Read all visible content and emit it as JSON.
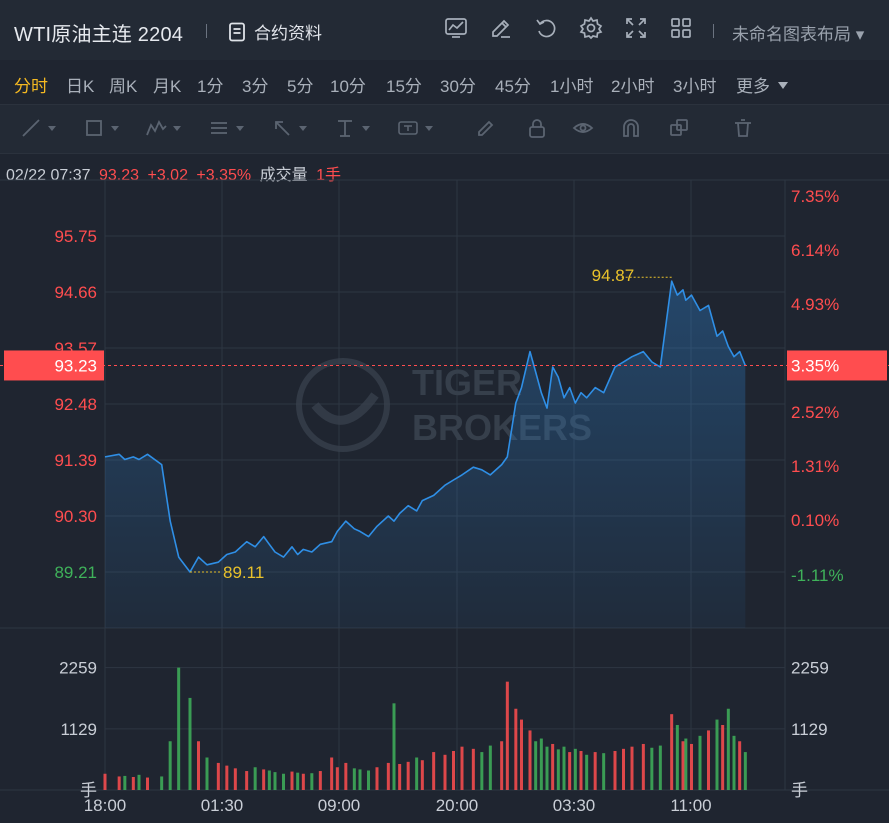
{
  "header": {
    "title": "WTI原油主连 2204",
    "contract_info_label": "合约资料",
    "layout_label": "未命名图表布局 ▾",
    "tool_icons": [
      "chart-template-icon",
      "edit-icon",
      "undo-icon",
      "settings-icon",
      "fullscreen-icon",
      "grid-layout-icon"
    ]
  },
  "periods": [
    "分时",
    "日K",
    "周K",
    "月K",
    "1分",
    "3分",
    "5分",
    "10分",
    "15分",
    "30分",
    "45分",
    "1小时",
    "2小时",
    "3小时",
    "更多"
  ],
  "active_period": "分时",
  "drawing_tools": [
    "line-tool-icon",
    "rectangle-tool-icon",
    "pattern-tool-icon",
    "fib-tool-icon",
    "arrow-tool-icon",
    "measure-tool-icon",
    "text-tool-icon",
    "brush-icon",
    "lock-icon",
    "eye-icon",
    "magnet-icon",
    "copy-icon",
    "trash-icon"
  ],
  "info": {
    "time": "02/22 07:37",
    "price": "93.23",
    "change": "+3.02",
    "change_pct": "+3.35%",
    "volume_label": "成交量",
    "volume_value": "1手"
  },
  "watermark": {
    "line1": "TIGER",
    "line2": "BROKERS"
  },
  "colors": {
    "up": "#ff4d4f",
    "down": "#3fb25a",
    "line": "#2f8fe6",
    "marker": "#e8c12b",
    "background": "#1f2530"
  },
  "chart_data": {
    "type": "line",
    "prev_close": 90.21,
    "last_price": 93.23,
    "last_pct": "3.35%",
    "ylim": [
      88.12,
      96.84
    ],
    "price_ticks": [
      "95.75",
      "94.66",
      "93.57",
      "92.48",
      "91.39",
      "90.30",
      "89.21"
    ],
    "pct_ticks": [
      "7.35%",
      "6.14%",
      "4.93%",
      "3.72%",
      "2.52%",
      "1.31%",
      "0.10%",
      "-1.11%"
    ],
    "x_ticks": [
      "18:00",
      "01:30",
      "09:00",
      "20:00",
      "03:30",
      "11:00"
    ],
    "high_label": "94.87",
    "low_label": "89.11",
    "volume_ticks": [
      "2259",
      "1129"
    ],
    "volume_unit": "手",
    "x_hours": [
      0,
      0.5,
      0.7,
      1,
      1.2,
      1.5,
      2,
      2.3,
      2.6,
      3,
      3.3,
      3.6,
      4,
      4.3,
      4.6,
      5,
      5.3,
      5.6,
      5.8,
      6,
      6.3,
      6.6,
      6.8,
      7,
      7.3,
      7.6,
      8,
      8.2,
      8.5,
      8.8,
      9,
      9.3,
      9.6,
      10,
      10.2,
      10.4,
      10.7,
      11,
      11.2,
      11.6,
      12,
      12.3,
      12.6,
      13,
      13.3,
      13.6,
      14,
      14.2,
      14.5,
      14.7,
      15,
      15.2,
      15.4,
      15.6,
      15.8,
      16,
      16.2,
      16.4,
      16.6,
      16.8,
      17,
      17.3,
      17.6,
      18,
      18.3,
      18.6,
      19,
      19.3,
      19.6,
      20,
      20.2,
      20.4,
      20.5,
      20.7,
      21,
      21.3,
      21.6,
      21.8,
      22,
      22.2,
      22.4,
      22.6
    ],
    "price": [
      91.45,
      91.5,
      91.4,
      91.45,
      91.4,
      91.5,
      91.3,
      90.2,
      89.5,
      89.21,
      89.5,
      89.35,
      89.4,
      89.55,
      89.6,
      89.8,
      89.7,
      89.9,
      89.75,
      89.6,
      89.5,
      89.7,
      89.55,
      89.65,
      89.6,
      89.75,
      89.8,
      90.0,
      90.2,
      90.05,
      90.0,
      89.9,
      90.1,
      90.3,
      90.2,
      90.35,
      90.5,
      90.4,
      90.6,
      90.7,
      90.9,
      91.0,
      91.1,
      91.25,
      91.2,
      91.1,
      91.3,
      91.45,
      92.5,
      92.8,
      93.5,
      93.1,
      92.7,
      92.4,
      93.2,
      93.0,
      92.6,
      92.8,
      92.5,
      92.7,
      92.6,
      92.8,
      92.7,
      93.2,
      93.3,
      93.4,
      93.5,
      93.3,
      93.2,
      94.87,
      94.6,
      94.7,
      94.5,
      94.6,
      94.3,
      94.4,
      93.8,
      93.9,
      93.6,
      93.4,
      93.5,
      93.23
    ],
    "volume": [
      300,
      250,
      260,
      240,
      280,
      230,
      250,
      900,
      2259,
      1700,
      900,
      600,
      500,
      450,
      400,
      350,
      420,
      380,
      360,
      330,
      300,
      340,
      320,
      300,
      310,
      350,
      600,
      420,
      500,
      400,
      380,
      360,
      420,
      500,
      1600,
      480,
      520,
      600,
      550,
      700,
      650,
      720,
      800,
      760,
      700,
      820,
      900,
      2000,
      1500,
      1300,
      1100,
      900,
      950,
      800,
      850,
      750,
      800,
      700,
      760,
      720,
      650,
      700,
      680,
      720,
      760,
      800,
      850,
      780,
      820,
      1400,
      1200,
      900,
      950,
      850,
      1000,
      1100,
      1300,
      1200,
      1500,
      1000,
      900,
      700
    ]
  }
}
